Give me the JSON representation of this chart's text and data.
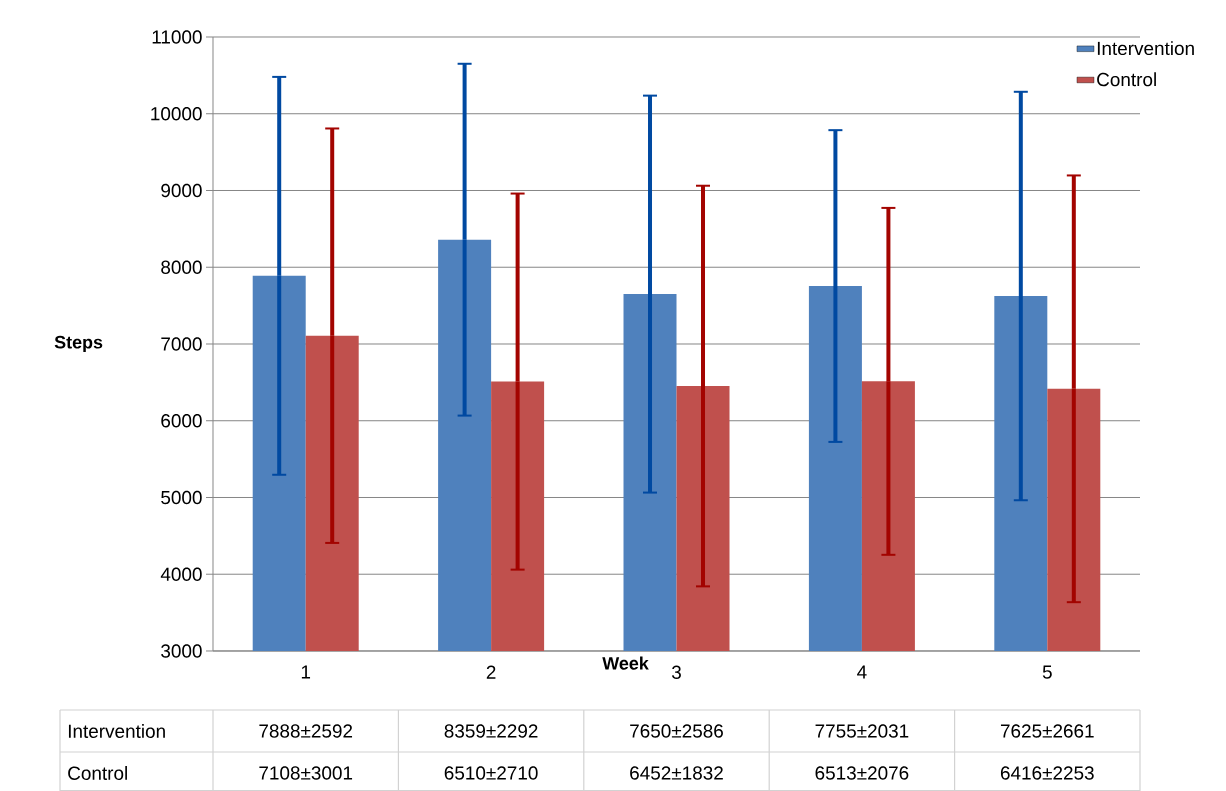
{
  "chart_data": {
    "type": "bar",
    "xlabel": "Week",
    "ylabel": "Steps",
    "categories": [
      "1",
      "2",
      "3",
      "4",
      "5"
    ],
    "series": [
      {
        "name": "Intervention",
        "color": "#4f81bd",
        "values": [
          7888,
          8359,
          7650,
          7755,
          7625
        ],
        "errors": [
          2592,
          2292,
          2586,
          2031,
          2661
        ],
        "value_labels": [
          "7888±2592",
          "8359±2292",
          "7650±2586",
          "7755±2031",
          "7625±2661"
        ]
      },
      {
        "name": "Control",
        "color": "#c0504d",
        "values": [
          7108,
          6510,
          6452,
          6513,
          6416
        ],
        "errors": [
          2700,
          2450,
          2610,
          2260,
          2780
        ],
        "value_labels": [
          "7108±3001",
          "6510±2710",
          "6452±1832",
          "6513±2076",
          "6416±2253"
        ]
      }
    ],
    "ylim": [
      3000,
      11000
    ],
    "yticks": [
      3000,
      4000,
      5000,
      6000,
      7000,
      8000,
      9000,
      10000,
      11000
    ],
    "grid": "y",
    "legend": "top right"
  }
}
